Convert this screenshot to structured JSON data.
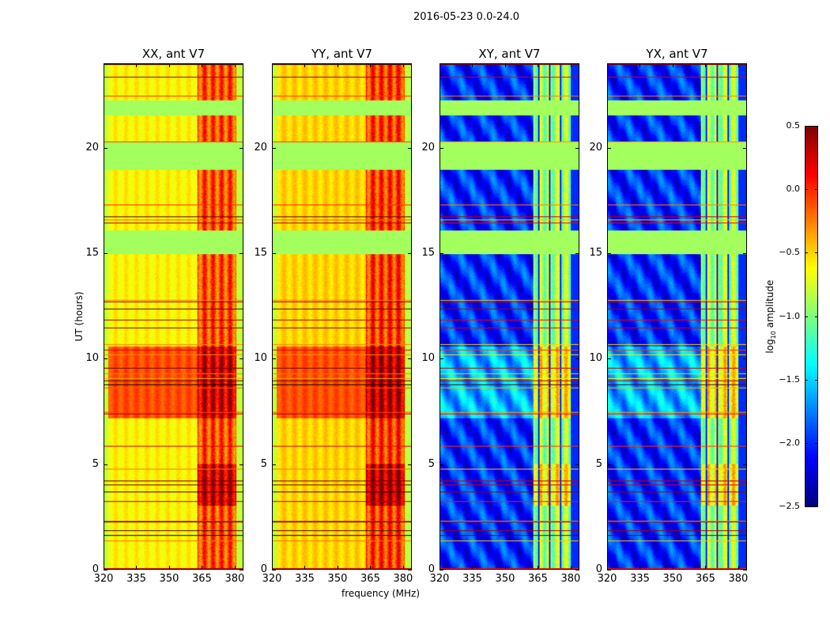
{
  "chart_data": {
    "type": "heatmap",
    "title": "2016-05-23 0.0-24.0",
    "xlabel": "frequency (MHz)",
    "ylabel": "UT (hours)",
    "xlim": [
      320,
      384
    ],
    "ylim": [
      0,
      24
    ],
    "xticks": [
      320,
      335,
      350,
      365,
      380
    ],
    "yticks": [
      0,
      5,
      10,
      15,
      20
    ],
    "colormap": "jet",
    "colorbar": {
      "label": "log10 amplitude",
      "label_main": "log",
      "label_sub": "10",
      "label_rest": " amplitude",
      "range": [
        -2.5,
        0.5
      ],
      "ticks": [
        "0.5",
        "0.0",
        "−0.5",
        "−1.0",
        "−1.5",
        "−2.0",
        "−2.5"
      ],
      "tick_values": [
        0.5,
        0,
        -0.5,
        -1,
        -1.5,
        -2,
        -2.5
      ]
    },
    "flagged_hours": [
      [
        21.6,
        22.3
      ],
      [
        19.0,
        20.3
      ],
      [
        15.0,
        16.1
      ]
    ],
    "flag_value": -0.9,
    "rfi_band_mhz": [
      363,
      381
    ],
    "panels": [
      {
        "title": "XX, ant V7",
        "background": -0.6,
        "rfi_level": -0.1,
        "active_period": [
          7.2,
          10.6
        ],
        "active_level": -0.1
      },
      {
        "title": "YY, ant V7",
        "background": -0.5,
        "rfi_level": -0.05,
        "active_period": [
          7.2,
          10.6
        ],
        "active_level": -0.1
      },
      {
        "title": "XY, ant V7",
        "background": -2.0,
        "rfi_level": -0.9,
        "active_period": [
          7.2,
          10.6
        ],
        "active_level": -1.6
      },
      {
        "title": "YX, ant V7",
        "background": -2.0,
        "rfi_level": -0.9,
        "active_period": [
          7.2,
          10.6
        ],
        "active_level": -1.6
      }
    ]
  }
}
